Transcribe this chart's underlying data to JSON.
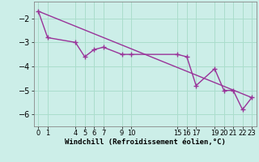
{
  "xlabel": "Windchill (Refroidissement éolien,°C)",
  "background_color": "#cceee8",
  "grid_color": "#aaddcc",
  "line_color": "#993399",
  "xlim": [
    -0.5,
    23.5
  ],
  "ylim": [
    -6.5,
    -1.3
  ],
  "yticks": [
    -6,
    -5,
    -4,
    -3,
    -2
  ],
  "xticks": [
    0,
    1,
    4,
    5,
    6,
    7,
    9,
    10,
    15,
    16,
    17,
    19,
    20,
    21,
    22,
    23
  ],
  "data_x": [
    0,
    1,
    4,
    5,
    6,
    7,
    9,
    10,
    15,
    16,
    17,
    19,
    20,
    21,
    22,
    23
  ],
  "data_y": [
    -1.7,
    -2.8,
    -3.0,
    -3.6,
    -3.3,
    -3.2,
    -3.5,
    -3.5,
    -3.5,
    -3.6,
    -4.8,
    -4.1,
    -5.0,
    -5.0,
    -5.8,
    -5.3
  ],
  "trend_x": [
    0,
    23
  ],
  "trend_y": [
    -1.7,
    -5.3
  ],
  "marker_size": 4,
  "line_width": 1.0
}
